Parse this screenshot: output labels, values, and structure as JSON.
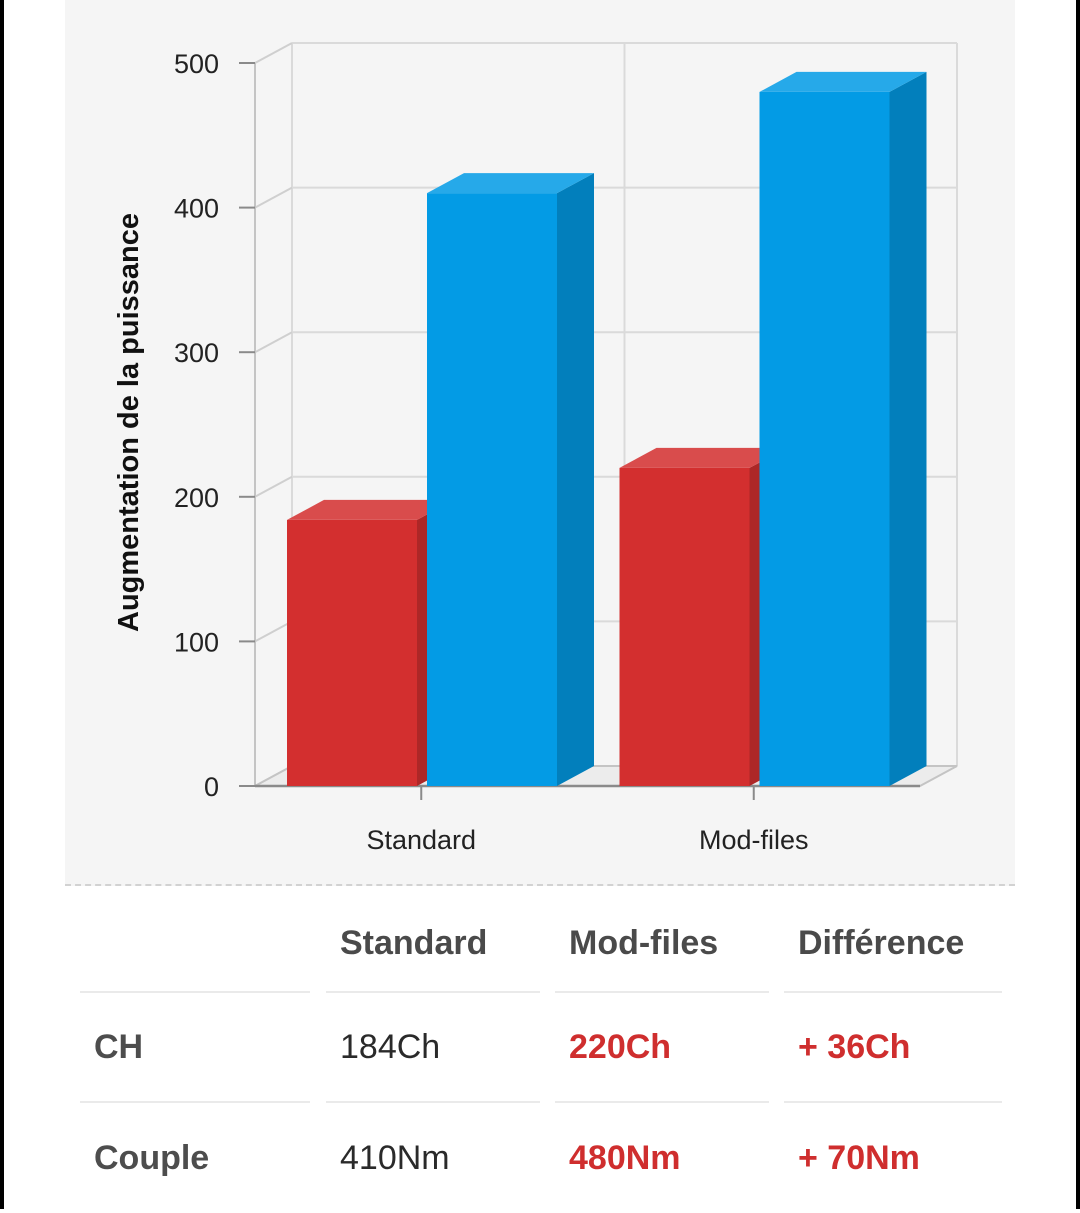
{
  "chart_data": {
    "type": "bar",
    "ylabel": "Augmentation de la puissance",
    "xlabel": "",
    "categories": [
      "Standard",
      "Mod-files"
    ],
    "series": [
      {
        "values": [
          184,
          220
        ],
        "color": "#d32f2f"
      },
      {
        "values": [
          410,
          480
        ],
        "color": "#039be5"
      }
    ],
    "ylim": [
      0,
      500
    ],
    "yticks": [
      0,
      100,
      200,
      300,
      400,
      500
    ],
    "grid": true,
    "style": "3d-column"
  },
  "table": {
    "headers": [
      "",
      "Standard",
      "Mod-files",
      "Différence"
    ],
    "rows": [
      {
        "label": "CH",
        "standard": "184Ch",
        "modfiles": "220Ch",
        "difference": "+ 36Ch"
      },
      {
        "label": "Couple",
        "standard": "410Nm",
        "modfiles": "480Nm",
        "difference": "+ 70Nm"
      }
    ],
    "highlight_color": "#cf2e2e"
  }
}
